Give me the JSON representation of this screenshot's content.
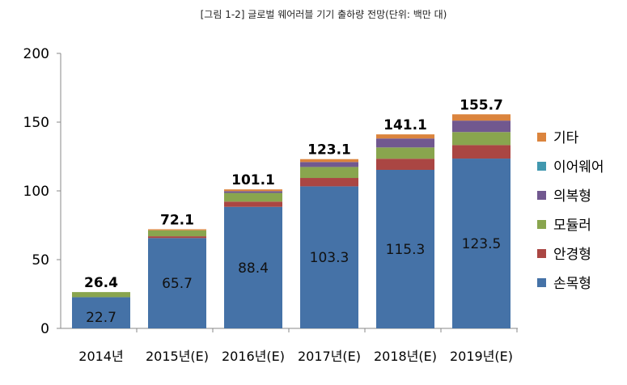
{
  "chart_data": {
    "type": "bar",
    "stacked": true,
    "title": "[그림 1-2] 글로벌 웨어러블 기기 출하량 전망(단위: 백만 대)",
    "xlabel": "",
    "ylabel": "",
    "ylim": [
      0,
      200
    ],
    "yticks": [
      0,
      50,
      100,
      150,
      200
    ],
    "categories": [
      "2014년",
      "2015년(E)",
      "2016년(E)",
      "2017년(E)",
      "2018년(E)",
      "2019년(E)"
    ],
    "series": [
      {
        "name": "손목형",
        "color": "#4572a7",
        "values": [
          22.7,
          65.7,
          88.4,
          103.3,
          115.3,
          123.5
        ],
        "labeled": true
      },
      {
        "name": "안경형",
        "color": "#aa4643",
        "values": [
          0,
          1.3,
          3.8,
          6.1,
          8.1,
          9.8
        ]
      },
      {
        "name": "모듈러",
        "color": "#89a54e",
        "values": [
          3.7,
          4.3,
          6.3,
          8.0,
          8.2,
          9.5
        ]
      },
      {
        "name": "의복형",
        "color": "#71588f",
        "values": [
          0,
          0,
          1.3,
          3.6,
          6.5,
          8.3
        ]
      },
      {
        "name": "이어웨어",
        "color": "#4198af",
        "values": [
          0,
          0,
          0,
          0,
          0,
          0
        ]
      },
      {
        "name": "기타",
        "color": "#db843d",
        "values": [
          0,
          0.8,
          1.3,
          2.1,
          3.0,
          4.6
        ]
      }
    ],
    "totals": [
      "26.4",
      "72.1",
      "101.1",
      "123.1",
      "141.1",
      "155.7"
    ],
    "base_labels": [
      "22.7",
      "65.7",
      "88.4",
      "103.3",
      "115.3",
      "123.5"
    ],
    "legend_position": "right",
    "grid": false
  }
}
